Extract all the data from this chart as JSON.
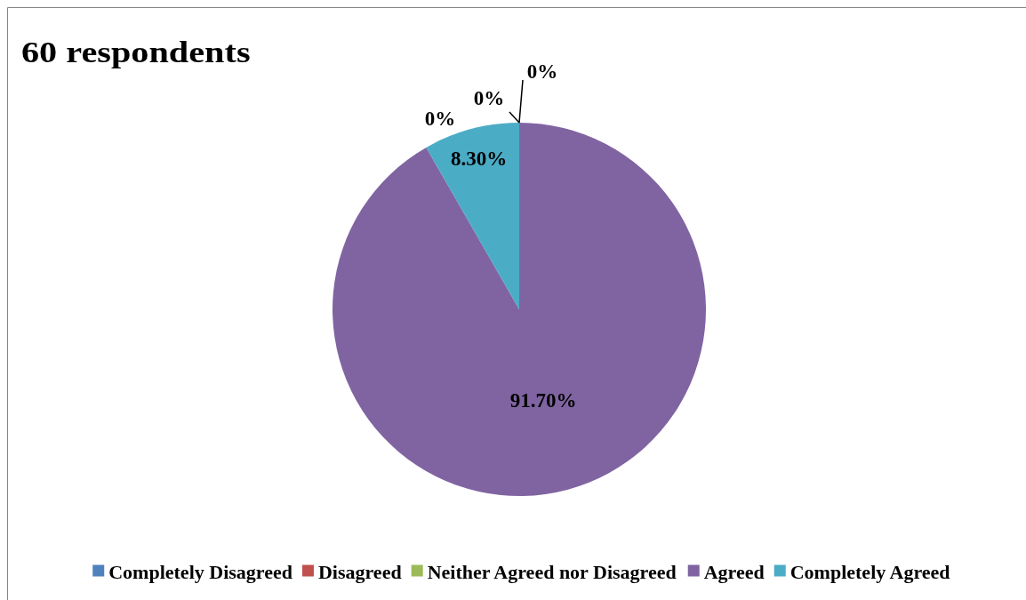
{
  "chart_data": {
    "type": "pie",
    "title": "60 respondents",
    "categories": [
      "Completely Disagreed",
      "Disagreed",
      "Neither Agreed nor Disagreed",
      "Agreed",
      "Completely Agreed"
    ],
    "values": [
      0,
      0,
      0,
      91.7,
      8.3
    ],
    "colors": [
      "#4f81bd",
      "#c0504d",
      "#9bbb59",
      "#8064a2",
      "#4bacc6"
    ],
    "value_labels": [
      "0%",
      "0%",
      "0%",
      "91.70%",
      "8.30%"
    ],
    "legend": "bottom"
  }
}
